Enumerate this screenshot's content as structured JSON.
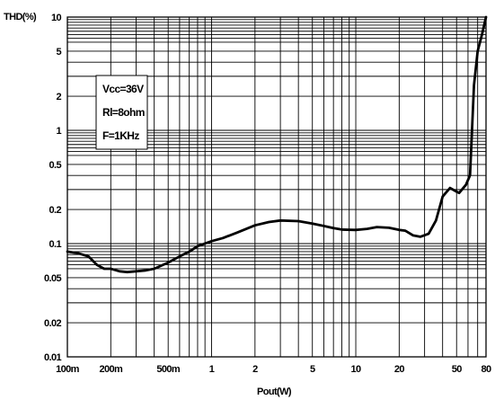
{
  "chart_data": {
    "type": "line",
    "title": "",
    "xlabel": "Pout(W)",
    "ylabel": "THD(%)",
    "xscale": "log",
    "yscale": "log",
    "xlim": [
      0.1,
      80
    ],
    "ylim": [
      0.01,
      10
    ],
    "grid": true,
    "x_tick_labels": [
      {
        "value": 0.1,
        "label": "100m"
      },
      {
        "value": 0.2,
        "label": "200m"
      },
      {
        "value": 0.5,
        "label": "500m"
      },
      {
        "value": 1,
        "label": "1"
      },
      {
        "value": 2,
        "label": "2"
      },
      {
        "value": 5,
        "label": "5"
      },
      {
        "value": 10,
        "label": "10"
      },
      {
        "value": 20,
        "label": "20"
      },
      {
        "value": 50,
        "label": "50"
      },
      {
        "value": 80,
        "label": "80"
      }
    ],
    "y_tick_labels": [
      {
        "value": 0.01,
        "label": "0.01"
      },
      {
        "value": 0.02,
        "label": "0.02"
      },
      {
        "value": 0.05,
        "label": "0.05"
      },
      {
        "value": 0.1,
        "label": "0.1"
      },
      {
        "value": 0.2,
        "label": "0.2"
      },
      {
        "value": 0.5,
        "label": "0.5"
      },
      {
        "value": 1,
        "label": "1"
      },
      {
        "value": 2,
        "label": "2"
      },
      {
        "value": 5,
        "label": "5"
      },
      {
        "value": 10,
        "label": "10"
      }
    ],
    "annotations": [
      "Vcc=36V",
      "Rl=8ohm",
      "F=1KHz"
    ],
    "series": [
      {
        "x": [
          0.1,
          0.12,
          0.14,
          0.16,
          0.18,
          0.2,
          0.23,
          0.26,
          0.3,
          0.35,
          0.4,
          0.45,
          0.5,
          0.6,
          0.7,
          0.8,
          1.0,
          1.2,
          1.5,
          2.0,
          2.5,
          3.0,
          4.0,
          5.0,
          6.0,
          7.0,
          8.0,
          10,
          12,
          14,
          17,
          20,
          22,
          25,
          28,
          32,
          36,
          40,
          45,
          52,
          58,
          62,
          66,
          70,
          75,
          80
        ],
        "y": [
          0.085,
          0.082,
          0.077,
          0.065,
          0.06,
          0.06,
          0.057,
          0.056,
          0.057,
          0.058,
          0.06,
          0.064,
          0.068,
          0.077,
          0.085,
          0.095,
          0.105,
          0.112,
          0.125,
          0.145,
          0.155,
          0.16,
          0.158,
          0.15,
          0.143,
          0.137,
          0.133,
          0.132,
          0.135,
          0.14,
          0.138,
          0.132,
          0.13,
          0.118,
          0.115,
          0.122,
          0.16,
          0.26,
          0.31,
          0.28,
          0.33,
          0.4,
          2.5,
          5.0,
          7.0,
          10
        ]
      }
    ]
  }
}
